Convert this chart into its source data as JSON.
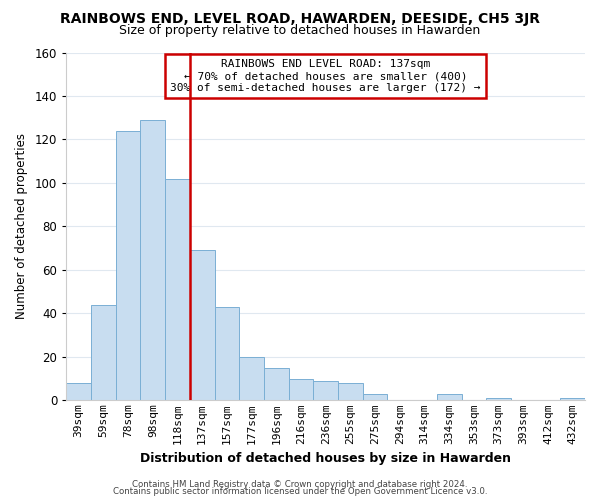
{
  "title": "RAINBOWS END, LEVEL ROAD, HAWARDEN, DEESIDE, CH5 3JR",
  "subtitle": "Size of property relative to detached houses in Hawarden",
  "xlabel": "Distribution of detached houses by size in Hawarden",
  "ylabel": "Number of detached properties",
  "bar_labels": [
    "39sqm",
    "59sqm",
    "78sqm",
    "98sqm",
    "118sqm",
    "137sqm",
    "157sqm",
    "177sqm",
    "196sqm",
    "216sqm",
    "236sqm",
    "255sqm",
    "275sqm",
    "294sqm",
    "314sqm",
    "334sqm",
    "353sqm",
    "373sqm",
    "393sqm",
    "412sqm",
    "432sqm"
  ],
  "bar_values": [
    8,
    44,
    124,
    129,
    102,
    69,
    43,
    20,
    15,
    10,
    9,
    8,
    3,
    0,
    0,
    3,
    0,
    1,
    0,
    0,
    1
  ],
  "bar_color": "#c8ddf0",
  "bar_edge_color": "#7aafd4",
  "ylim": [
    0,
    160
  ],
  "yticks": [
    0,
    20,
    40,
    60,
    80,
    100,
    120,
    140,
    160
  ],
  "vline_index": 4.5,
  "vline_color": "#cc0000",
  "annotation_line0": "RAINBOWS END LEVEL ROAD: 137sqm",
  "annotation_line1": "← 70% of detached houses are smaller (400)",
  "annotation_line2": "30% of semi-detached houses are larger (172) →",
  "annotation_box_color": "#cc0000",
  "footer_line1": "Contains HM Land Registry data © Crown copyright and database right 2024.",
  "footer_line2": "Contains public sector information licensed under the Open Government Licence v3.0.",
  "background_color": "#ffffff",
  "grid_color": "#e0e8f0"
}
